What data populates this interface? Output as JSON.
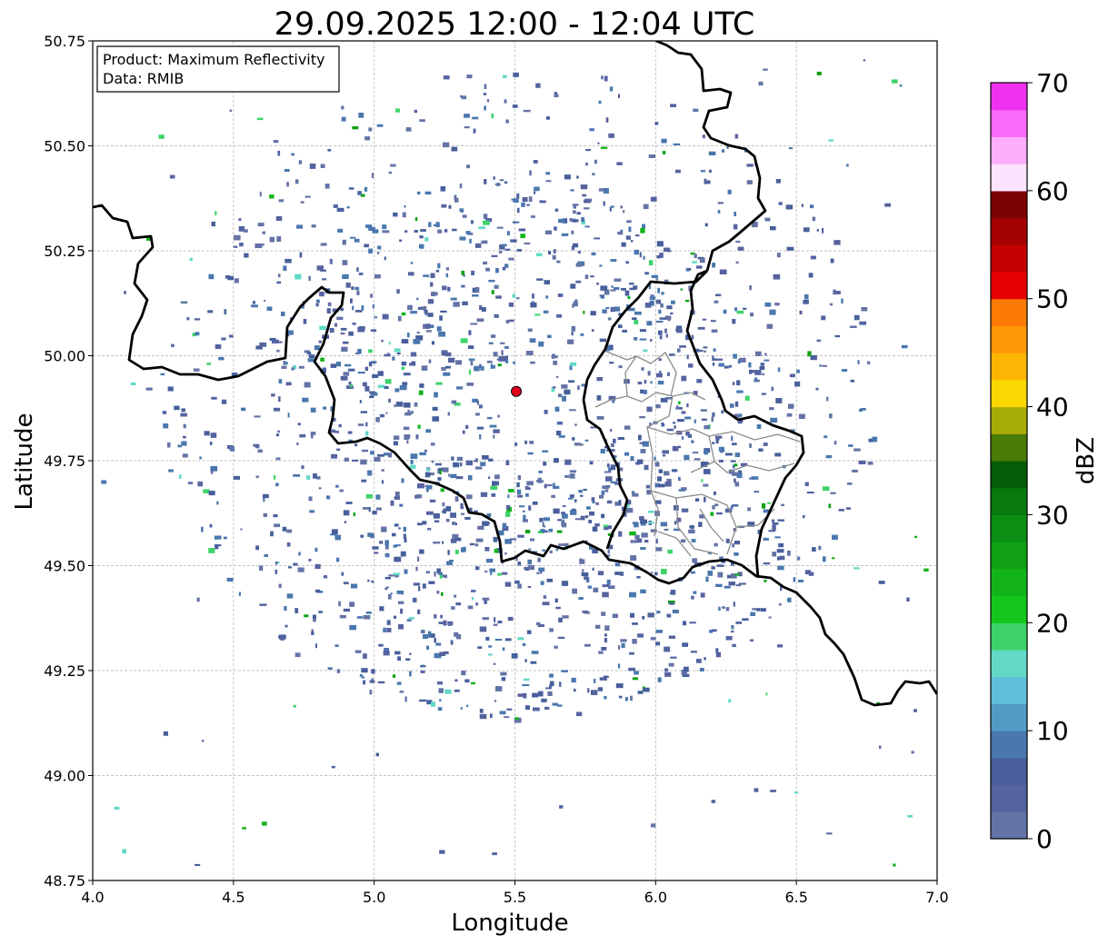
{
  "title": "29.09.2025 12:00 - 12:04 UTC",
  "map": {
    "xlabel": "Longitude",
    "ylabel": "Latitude",
    "xlim": [
      4.0,
      7.0
    ],
    "ylim": [
      48.75,
      50.75
    ],
    "xticks": [
      "4.0",
      "4.5",
      "5.0",
      "5.5",
      "6.0",
      "6.5",
      "7.0"
    ],
    "yticks": [
      "48.75",
      "49.00",
      "49.25",
      "49.50",
      "49.75",
      "50.00",
      "50.25",
      "50.50",
      "50.75"
    ],
    "grid": true,
    "radar_site": {
      "lon": 5.505,
      "lat": 49.915,
      "color": "#e3001b"
    }
  },
  "info_box": {
    "product": "Product: Maximum Reflectivity",
    "data": "Data: RMIB"
  },
  "colorbar": {
    "label": "dBZ",
    "range": [
      0,
      70
    ],
    "ticks": [
      "0",
      "10",
      "20",
      "30",
      "40",
      "50",
      "60",
      "70"
    ],
    "colors": [
      "#6473a6",
      "#5563a0",
      "#485f9c",
      "#4a77ae",
      "#519bc4",
      "#5fbed8",
      "#62d9c6",
      "#3ed36a",
      "#14c51b",
      "#13b41b",
      "#0fa113",
      "#0a8f14",
      "#09780f",
      "#045c07",
      "#4a7a07",
      "#a8ad06",
      "#fad703",
      "#fcb503",
      "#fc9705",
      "#fc7b04",
      "#e60003",
      "#c40202",
      "#a40202",
      "#7a0202",
      "#fee3fe",
      "#fdaefd",
      "#fb6bfb",
      "#ef31ef"
    ]
  }
}
